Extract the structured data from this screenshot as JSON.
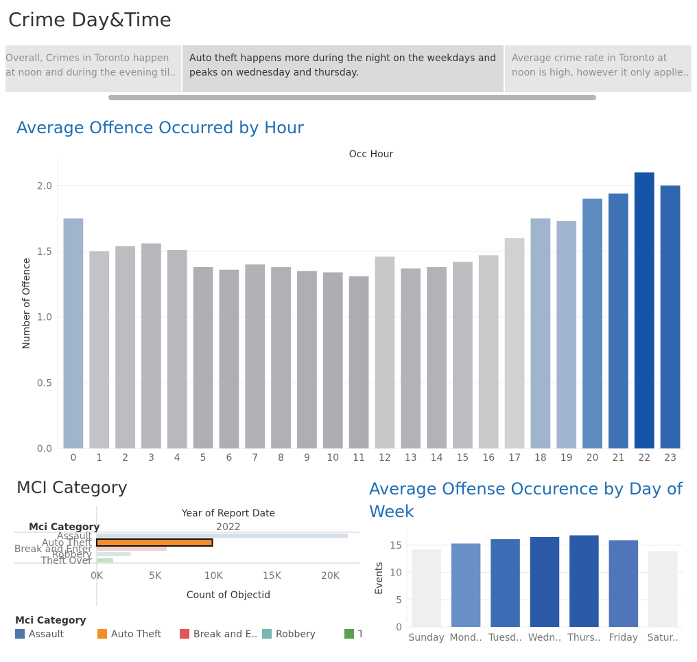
{
  "dashboard": {
    "title": "Crime Day&Time"
  },
  "story": {
    "points": [
      {
        "text": "Overall, Crimes in Toronto happen at noon and during the evening til..",
        "line1": "Overall, Crimes in Toronto happen",
        "line2": "at noon and during the evening til..",
        "active": false
      },
      {
        "text": "Auto theft  happens more during the night on the weekdays and peaks on wednesday and thursday.",
        "line1": "Auto theft  happens more during the night on the weekdays and",
        "line2": "peaks on wednesday and thursday.",
        "active": true
      },
      {
        "text": "Average crime rate in Toronto at noon is high, however it only applie..",
        "line1": "Average crime rate in Toronto at",
        "line2": "noon is high, however it only applie..",
        "active": false
      }
    ]
  },
  "hour_chart": {
    "title": "Average Offence Occurred by Hour"
  },
  "mci_chart": {
    "title": "MCI Category"
  },
  "dow_chart": {
    "title": "Average Offense Occurence by Day of Week",
    "title_line1": "Average Offense Occurence by Day of",
    "title_line2": "Week"
  },
  "legend": {
    "title": "Mci Category",
    "items": [
      {
        "label": "Assault",
        "color": "#4e79a7"
      },
      {
        "label": "Auto Theft",
        "color": "#f28e2b"
      },
      {
        "label": "Break and E..",
        "color": "#e15759"
      },
      {
        "label": "Robbery",
        "color": "#76b7b2"
      },
      {
        "label": "T",
        "color": "#59a14f"
      }
    ]
  },
  "chart_data": [
    {
      "id": "hour",
      "type": "bar",
      "title": "Average Offence Occurred by Hour",
      "xlabel": "Occ Hour",
      "ylabel": "Number of Offence",
      "categories": [
        "0",
        "1",
        "2",
        "3",
        "4",
        "5",
        "6",
        "7",
        "8",
        "9",
        "10",
        "11",
        "12",
        "13",
        "14",
        "15",
        "16",
        "17",
        "18",
        "19",
        "20",
        "21",
        "22",
        "23"
      ],
      "values": [
        1.75,
        1.5,
        1.54,
        1.56,
        1.51,
        1.38,
        1.36,
        1.4,
        1.38,
        1.35,
        1.34,
        1.31,
        1.46,
        1.37,
        1.38,
        1.42,
        1.47,
        1.6,
        1.75,
        1.73,
        1.9,
        1.94,
        2.1,
        2.0
      ],
      "colors": [
        "#a0b4cc",
        "#c3c2c6",
        "#bdbcc0",
        "#b8b7bb",
        "#b9b8bc",
        "#afaeb2",
        "#afaeb2",
        "#b2b1b5",
        "#b1b0b4",
        "#afaeb2",
        "#aeadb1",
        "#adacb0",
        "#c8c8ca",
        "#b3b2b6",
        "#b3b2b6",
        "#bebdc1",
        "#c9c9cb",
        "#d1d1d1",
        "#a1b4cd",
        "#a2b5ce",
        "#5e8bc0",
        "#3f73b5",
        "#1554a6",
        "#3066b0"
      ],
      "yticks": [
        "0.0",
        "0.5",
        "1.0",
        "1.5",
        "2.0"
      ],
      "ylim": [
        0,
        2.2
      ],
      "grid": true
    },
    {
      "id": "mci",
      "type": "bar",
      "orientation": "horizontal",
      "column_header": "Year of Report Date",
      "column_value": "2022",
      "row_header": "Mci Category",
      "xlabel": "Count of Objectid",
      "categories": [
        "Assault",
        "Auto Theft",
        "Break and Enter",
        "Robbery",
        "Theft Over"
      ],
      "values": [
        21500,
        9900,
        6000,
        2900,
        1400
      ],
      "colors": [
        "#d5dde6",
        "#f28e2b",
        "#f4cfcf",
        "#d4e8e6",
        "#c8e0c2"
      ],
      "highlighted": "Auto Theft",
      "xticks": [
        "0K",
        "5K",
        "10K",
        "15K",
        "20K"
      ],
      "xlim": [
        0,
        22000
      ]
    },
    {
      "id": "dow",
      "type": "bar",
      "title": "Average Offense Occurence by Day of Week",
      "ylabel": "Events",
      "categories": [
        "Sunday",
        "Mond..",
        "Tuesd..",
        "Wedn..",
        "Thurs..",
        "Friday",
        "Satur.."
      ],
      "values": [
        14.2,
        15.3,
        16.1,
        16.5,
        16.8,
        15.9,
        13.9
      ],
      "colors": [
        "#efefef",
        "#6a8fc6",
        "#3d6db5",
        "#2b5aa8",
        "#2b5aa8",
        "#5075b9",
        "#efefef"
      ],
      "yticks": [
        "0",
        "5",
        "10",
        "15"
      ],
      "ylim": [
        0,
        18
      ],
      "grid": true
    }
  ]
}
